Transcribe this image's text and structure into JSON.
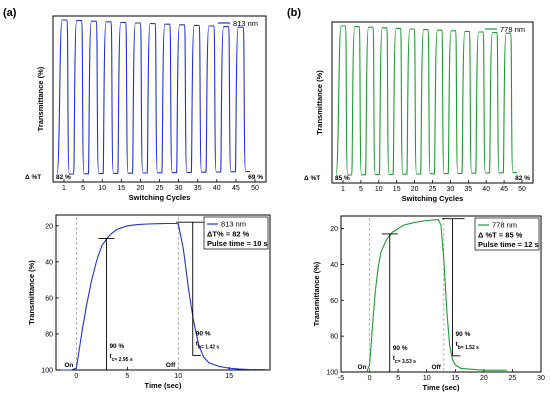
{
  "panel_labels": [
    "(a)",
    "(b)"
  ],
  "chart_data": [
    {
      "id": "a_top",
      "type": "line",
      "xlabel": "Switching Cycles",
      "ylabel": "Transmittance (%)",
      "x_ticks": [
        "1",
        "5",
        "10",
        "15",
        "20",
        "25",
        "30",
        "35",
        "40",
        "45",
        "50"
      ],
      "series": [
        {
          "name": "813 nm",
          "color": "#2632c8",
          "cycles": 13
        }
      ],
      "legend": "top-right",
      "annotations": {
        "delta_label": "Δ %T",
        "start_value": "82 %",
        "end_value": "69 %"
      }
    },
    {
      "id": "b_top",
      "type": "line",
      "xlabel": "Switching Cycles",
      "ylabel": "Transmittance (%)",
      "x_ticks": [
        "1",
        "5",
        "10",
        "15",
        "20",
        "25",
        "30",
        "35",
        "40",
        "45",
        "50"
      ],
      "series": [
        {
          "name": "778 nm",
          "color": "#1f9a34",
          "cycles": 13
        }
      ],
      "legend": "top-right",
      "annotations": {
        "delta_label": "Δ %T",
        "start_value": "85 %",
        "end_value": "82 %"
      }
    },
    {
      "id": "a_bottom",
      "type": "line",
      "xlabel": "Time (sec)",
      "ylabel": "Transmittance (%)",
      "xlim": [
        -2,
        19
      ],
      "ylim": [
        100,
        14
      ],
      "x_ticks": [
        0,
        5,
        10,
        15
      ],
      "y_ticks": [
        20,
        40,
        60,
        80,
        100
      ],
      "series": [
        {
          "name": "813 nm",
          "color": "#2632c8",
          "x": [
            -1.5,
            -0.5,
            0,
            0.3,
            0.6,
            1,
            1.5,
            2,
            2.5,
            3,
            3.5,
            4,
            5,
            6,
            7,
            8,
            9,
            9.8,
            10,
            10.5,
            11,
            11.5,
            12,
            12.5,
            13,
            14,
            15,
            16,
            17,
            18.5
          ],
          "y": [
            100,
            100,
            99,
            88,
            77,
            64,
            50,
            39,
            31,
            27,
            24,
            22,
            20,
            19.3,
            19,
            18.8,
            18.7,
            18.7,
            19,
            33,
            55,
            73,
            86,
            93,
            96,
            98,
            99,
            99.5,
            99.7,
            99.8
          ]
        }
      ],
      "legend": "top-right",
      "legend_lines": [
        "ΔT% = 82 %",
        "Pulse time = 10 s"
      ],
      "annotations": {
        "on": "On",
        "off": "Off",
        "color_pct": "90 %",
        "color_time": "tc= 2.95 s",
        "bleach_pct": "90 %",
        "bleach_time": "tb= 1.42 s"
      }
    },
    {
      "id": "b_bottom",
      "type": "line",
      "xlabel": "Time (sec)",
      "ylabel": "Transmittance (%)",
      "xlim": [
        -5,
        30
      ],
      "ylim": [
        100,
        13
      ],
      "x_ticks": [
        -5,
        0,
        5,
        10,
        15,
        20,
        25,
        30
      ],
      "y_ticks": [
        20,
        40,
        60,
        80,
        100
      ],
      "series": [
        {
          "name": "778 nm",
          "color": "#1f9a34",
          "x": [
            -0.5,
            0,
            0.5,
            1,
            1.5,
            2,
            3,
            4,
            5,
            6,
            8,
            10,
            12,
            12.5,
            13,
            13.5,
            14,
            14.5,
            15,
            16,
            18,
            20,
            24
          ],
          "y": [
            100,
            96,
            75,
            55,
            42,
            33,
            26,
            22,
            20,
            18,
            16.5,
            15.5,
            15,
            18,
            38,
            65,
            85,
            93,
            96,
            98,
            98.5,
            99,
            99
          ]
        }
      ],
      "legend": "top-right",
      "legend_lines": [
        "Δ %T = 85 %",
        "Pulse time = 12 s"
      ],
      "annotations": {
        "on": "On",
        "off": "Off",
        "color_pct": "90 %",
        "color_time": "tc= 3.53 s",
        "bleach_pct": "90 %",
        "bleach_time": "tb= 1.52 s"
      }
    }
  ]
}
